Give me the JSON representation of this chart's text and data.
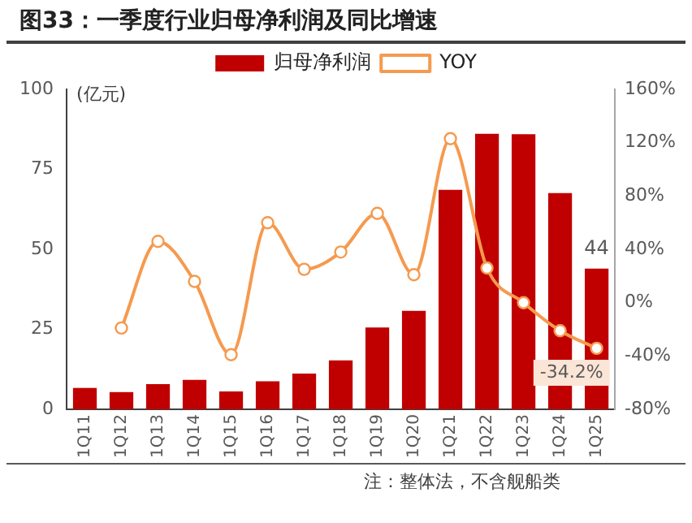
{
  "chart_data": {
    "type": "bar",
    "title": "图33：一季度行业归母净利润及同比增速",
    "ylabel": "(亿元)",
    "categories": [
      "1Q11",
      "1Q12",
      "1Q13",
      "1Q14",
      "1Q15",
      "1Q16",
      "1Q17",
      "1Q18",
      "1Q19",
      "1Q20",
      "1Q21",
      "1Q22",
      "1Q23",
      "1Q24",
      "1Q25"
    ],
    "series": [
      {
        "name": "归母净利润",
        "color": "#c00000",
        "values": [
          6.7,
          5.4,
          7.9,
          9.2,
          5.6,
          8.8,
          11.2,
          15.3,
          25.6,
          30.8,
          68.6,
          86.1,
          86,
          67.6,
          44
        ],
        "value_labels": [
          null,
          null,
          null,
          null,
          null,
          null,
          null,
          null,
          null,
          null,
          null,
          null,
          null,
          null,
          "44"
        ]
      },
      {
        "name": "YOY",
        "type": "line",
        "axis": "y2",
        "color": "#f59a4f",
        "marker": "circle",
        "values": [
          null,
          -19,
          46,
          16,
          -39,
          60,
          25,
          38,
          67,
          21,
          123,
          26,
          0,
          -21,
          -34.2
        ],
        "value_labels": [
          null,
          null,
          null,
          null,
          null,
          null,
          null,
          null,
          null,
          null,
          null,
          null,
          null,
          null,
          "-34.2%"
        ]
      }
    ],
    "ylim": [
      0,
      100
    ],
    "yticks": [
      0,
      25,
      50,
      75,
      100
    ],
    "y2lim": [
      -80,
      160
    ],
    "y2ticks": [
      {
        "value": -80,
        "label": "-80%"
      },
      {
        "value": -40,
        "label": "-40%"
      },
      {
        "value": 0,
        "label": "0%"
      },
      {
        "value": 40,
        "label": "40%"
      },
      {
        "value": 80,
        "label": "80%"
      },
      {
        "value": 120,
        "label": "120%"
      },
      {
        "value": 160,
        "label": "160%"
      }
    ],
    "legend": "top",
    "annotations": [
      "注：整体法，不含舰船类"
    ]
  }
}
